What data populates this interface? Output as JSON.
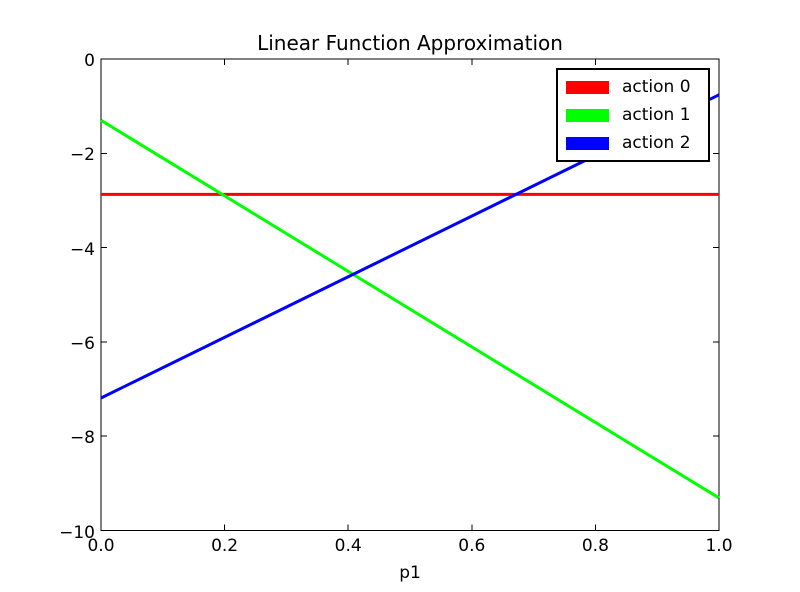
{
  "chart_data": {
    "type": "line",
    "title": "Linear Function Approximation",
    "xlabel": "p1",
    "ylabel": "",
    "xlim": [
      0.0,
      1.0
    ],
    "ylim": [
      -10,
      0
    ],
    "xticks": [
      0.0,
      0.2,
      0.4,
      0.6,
      0.8,
      1.0
    ],
    "xtick_labels": [
      "0.0",
      "0.2",
      "0.4",
      "0.6",
      "0.8",
      "1.0"
    ],
    "yticks": [
      0,
      -2,
      -4,
      -6,
      -8,
      -10
    ],
    "ytick_labels": [
      "0",
      "−2",
      "−4",
      "−6",
      "−8",
      "−10"
    ],
    "grid": false,
    "legend_position": "upper right",
    "axis_color": "#000000",
    "background_color": "#ffffff",
    "series": [
      {
        "name": "action 0",
        "color": "#ff0000",
        "x": [
          0.0,
          1.0
        ],
        "y": [
          -2.87,
          -2.87
        ]
      },
      {
        "name": "action 1",
        "color": "#00ff00",
        "x": [
          0.0,
          1.0
        ],
        "y": [
          -1.3,
          -9.31
        ]
      },
      {
        "name": "action 2",
        "color": "#0000ff",
        "x": [
          0.0,
          1.0
        ],
        "y": [
          -7.19,
          -0.76
        ]
      }
    ]
  }
}
